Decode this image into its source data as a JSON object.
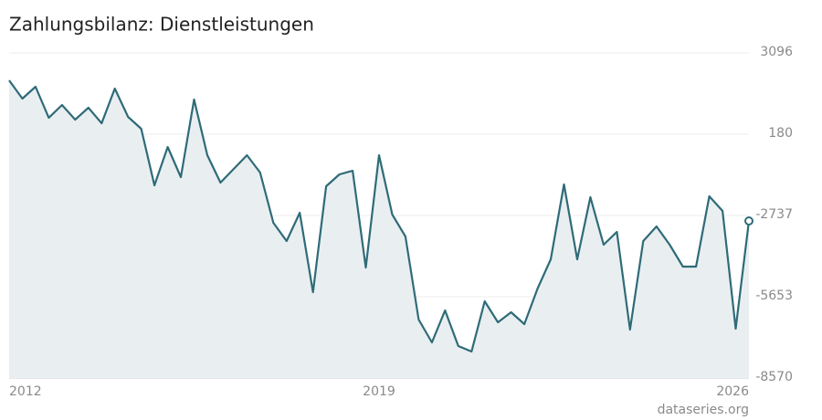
{
  "chart_data": {
    "type": "line",
    "title": "Zahlungsbilanz: Dienstleistungen",
    "source": "dataseries.org",
    "x": [
      2012,
      2012.25,
      2012.5,
      2012.75,
      2013,
      2013.25,
      2013.5,
      2013.75,
      2014,
      2014.25,
      2014.5,
      2014.75,
      2015,
      2015.25,
      2015.5,
      2015.75,
      2016,
      2016.25,
      2016.5,
      2016.75,
      2017,
      2017.25,
      2017.5,
      2017.75,
      2018,
      2018.25,
      2018.5,
      2018.75,
      2019,
      2019.25,
      2019.5,
      2019.75,
      2020,
      2020.25,
      2020.5,
      2020.75,
      2021,
      2021.25,
      2021.5,
      2021.75,
      2022,
      2022.25,
      2022.5,
      2022.75,
      2023,
      2023.25,
      2023.5,
      2023.75,
      2024,
      2024.25,
      2024.5,
      2024.75,
      2025,
      2025.25,
      2025.5,
      2025.75,
      2026
    ],
    "series": [
      {
        "color": "#2f6b78",
        "fill": "#e9eff1",
        "values": [
          2113,
          1458,
          1884,
          769,
          1228,
          704,
          1130,
          573,
          1818,
          802,
          376,
          -1656,
          -279,
          -1361,
          1425,
          -574,
          -1557,
          -1066,
          -574,
          -1197,
          -3000,
          -3655,
          -2639,
          -5490,
          -1688,
          -1262,
          -1131,
          -4605,
          -574,
          -2704,
          -3491,
          -6473,
          -7292,
          -6145,
          -7423,
          -7620,
          -5817,
          -6571,
          -6211,
          -6637,
          -5358,
          -4310,
          -1623,
          -4310,
          -2082,
          -3786,
          -3327,
          -6833,
          -3655,
          -3130,
          -3786,
          -4572,
          -4572,
          -2049,
          -2573,
          -6800,
          -2934
        ]
      }
    ],
    "xlim": [
      2012,
      2026
    ],
    "xticks": [
      2012,
      2019,
      2026
    ],
    "ylim": [
      -8570,
      3096
    ],
    "yticks": [
      -8570,
      -5653,
      -2737,
      180,
      3096
    ],
    "grid": true
  }
}
